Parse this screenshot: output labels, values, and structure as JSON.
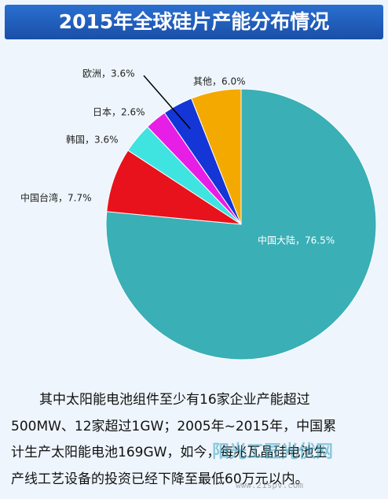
{
  "chart_data": {
    "type": "pie",
    "title": "2015年全球硅片产能分布情况",
    "labels": [
      "中国大陆，76.5%",
      "中国台湾，7.7%",
      "韩国，3.6%",
      "日本，2.6%",
      "欧洲，3.6%",
      "其他，6.0%"
    ],
    "values": [
      76.5,
      7.7,
      3.6,
      2.6,
      3.6,
      6.0
    ],
    "colors": [
      "#3aafb6",
      "#e8121c",
      "#3fe3e0",
      "#e61ee6",
      "#1436d6",
      "#f4a900"
    ]
  },
  "text": {
    "lines": [
      "其中太阳能电池组件至少有16家企业产能超过",
      "500MW、12家超过1GW；2005年~2015年，中国累",
      "计生产太阳能电池169GW，如今，每兆瓦晶硅电池生",
      "产线工艺设备的投资已经下降至最低60万元以内。"
    ]
  },
  "watermark": {
    "name": "阳光工匠光伏网",
    "url": "www.21spv.com"
  }
}
